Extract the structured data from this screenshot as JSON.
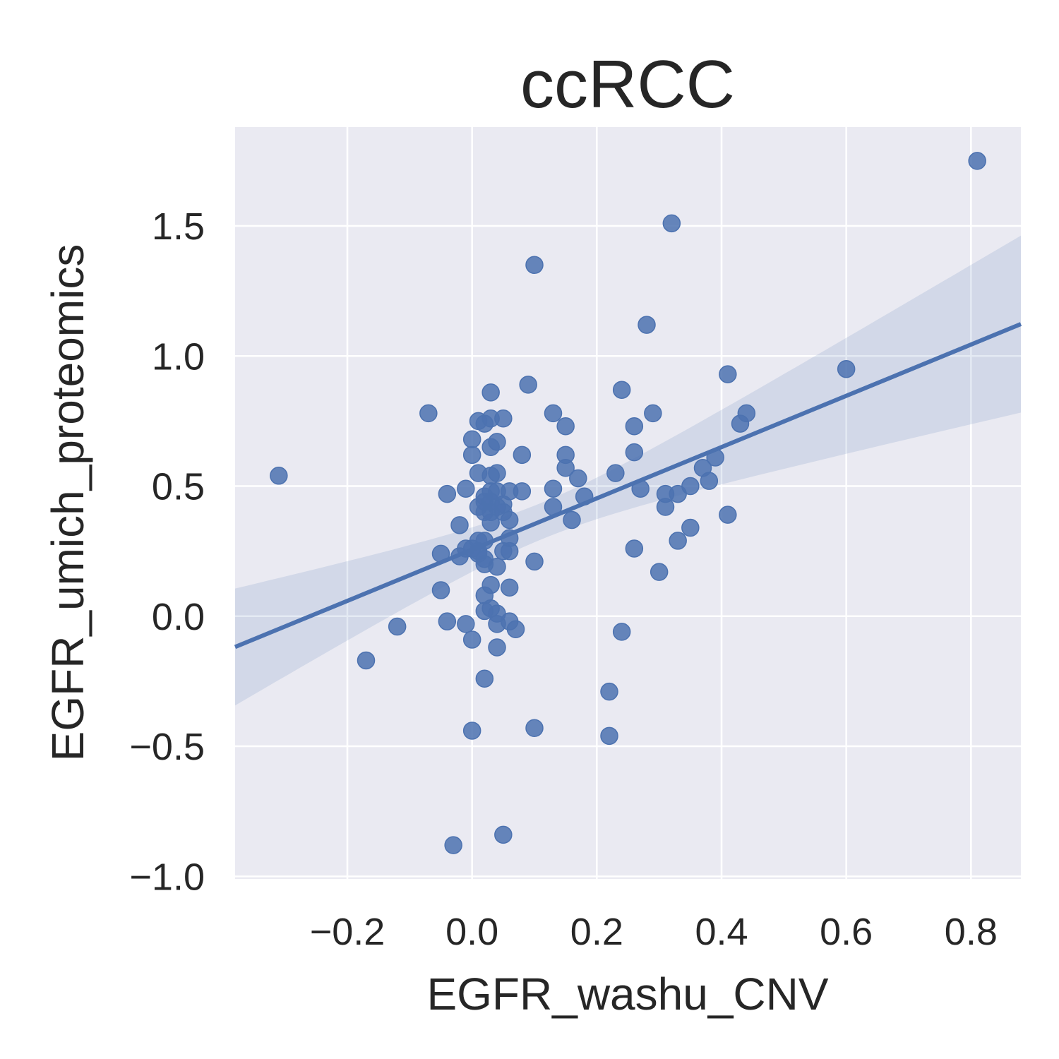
{
  "chart_data": {
    "type": "scatter",
    "title": "ccRCC",
    "xlabel": "EGFR_washu_CNV",
    "ylabel": "EGFR_umich_proteomics",
    "xlim": [
      -0.38,
      0.88
    ],
    "ylim": [
      -1.01,
      1.88
    ],
    "xticks": [
      -0.2,
      0.0,
      0.2,
      0.4,
      0.6,
      0.8
    ],
    "xtick_labels": [
      "−0.2",
      "0.0",
      "0.2",
      "0.4",
      "0.6",
      "0.8"
    ],
    "yticks": [
      -1.0,
      -0.5,
      0.0,
      0.5,
      1.0,
      1.5
    ],
    "ytick_labels": [
      "−1.0",
      "−0.5",
      "0.0",
      "0.5",
      "1.0",
      "1.5"
    ],
    "grid": true,
    "legend": "none",
    "colors": {
      "background": "#EAEAF2",
      "grid": "#FFFFFF",
      "points": "#4C72B0",
      "band": "#4C72B0"
    },
    "points": [
      [
        -0.31,
        0.54
      ],
      [
        -0.17,
        -0.17
      ],
      [
        -0.12,
        -0.04
      ],
      [
        -0.07,
        0.78
      ],
      [
        -0.05,
        0.24
      ],
      [
        -0.05,
        0.1
      ],
      [
        -0.04,
        -0.02
      ],
      [
        -0.04,
        0.47
      ],
      [
        -0.03,
        -0.88
      ],
      [
        -0.02,
        0.35
      ],
      [
        -0.02,
        0.23
      ],
      [
        -0.01,
        0.49
      ],
      [
        -0.01,
        -0.03
      ],
      [
        -0.01,
        0.26
      ],
      [
        0.0,
        0.68
      ],
      [
        0.0,
        0.62
      ],
      [
        0.0,
        -0.44
      ],
      [
        0.0,
        -0.09
      ],
      [
        0.0,
        0.26
      ],
      [
        0.01,
        0.42
      ],
      [
        0.01,
        0.55
      ],
      [
        0.01,
        0.29
      ],
      [
        0.01,
        0.25
      ],
      [
        0.01,
        0.75
      ],
      [
        0.01,
        0.24
      ],
      [
        0.02,
        0.74
      ],
      [
        0.02,
        0.44
      ],
      [
        0.02,
        -0.24
      ],
      [
        0.02,
        0.08
      ],
      [
        0.02,
        0.02
      ],
      [
        0.02,
        0.2
      ],
      [
        0.02,
        0.4
      ],
      [
        0.02,
        0.46
      ],
      [
        0.02,
        0.29
      ],
      [
        0.02,
        0.22
      ],
      [
        0.03,
        0.65
      ],
      [
        0.03,
        0.12
      ],
      [
        0.03,
        0.48
      ],
      [
        0.03,
        0.54
      ],
      [
        0.03,
        0.03
      ],
      [
        0.03,
        0.76
      ],
      [
        0.03,
        0.86
      ],
      [
        0.03,
        0.44
      ],
      [
        0.03,
        0.36
      ],
      [
        0.03,
        0.4
      ],
      [
        0.04,
        0.67
      ],
      [
        0.04,
        0.55
      ],
      [
        0.04,
        0.19
      ],
      [
        0.04,
        0.01
      ],
      [
        0.04,
        -0.12
      ],
      [
        0.04,
        -0.03
      ],
      [
        0.04,
        0.42
      ],
      [
        0.04,
        0.48
      ],
      [
        0.05,
        0.43
      ],
      [
        0.05,
        0.4
      ],
      [
        0.05,
        0.76
      ],
      [
        0.05,
        -0.84
      ],
      [
        0.05,
        0.25
      ],
      [
        0.06,
        0.3
      ],
      [
        0.06,
        0.11
      ],
      [
        0.06,
        -0.02
      ],
      [
        0.06,
        0.37
      ],
      [
        0.06,
        0.48
      ],
      [
        0.06,
        0.25
      ],
      [
        0.07,
        -0.05
      ],
      [
        0.08,
        0.48
      ],
      [
        0.08,
        0.62
      ],
      [
        0.09,
        0.89
      ],
      [
        0.1,
        1.35
      ],
      [
        0.1,
        -0.43
      ],
      [
        0.1,
        0.21
      ],
      [
        0.13,
        0.49
      ],
      [
        0.13,
        0.42
      ],
      [
        0.13,
        0.78
      ],
      [
        0.15,
        0.62
      ],
      [
        0.15,
        0.57
      ],
      [
        0.15,
        0.73
      ],
      [
        0.16,
        0.37
      ],
      [
        0.17,
        0.53
      ],
      [
        0.18,
        0.46
      ],
      [
        0.22,
        -0.46
      ],
      [
        0.22,
        -0.29
      ],
      [
        0.23,
        0.55
      ],
      [
        0.24,
        -0.06
      ],
      [
        0.24,
        0.87
      ],
      [
        0.26,
        0.73
      ],
      [
        0.26,
        0.63
      ],
      [
        0.26,
        0.26
      ],
      [
        0.28,
        1.12
      ],
      [
        0.27,
        0.49
      ],
      [
        0.29,
        0.78
      ],
      [
        0.3,
        0.17
      ],
      [
        0.31,
        0.47
      ],
      [
        0.31,
        0.42
      ],
      [
        0.32,
        1.51
      ],
      [
        0.33,
        0.47
      ],
      [
        0.33,
        0.29
      ],
      [
        0.35,
        0.34
      ],
      [
        0.35,
        0.5
      ],
      [
        0.37,
        0.57
      ],
      [
        0.38,
        0.52
      ],
      [
        0.39,
        0.61
      ],
      [
        0.41,
        0.93
      ],
      [
        0.41,
        0.39
      ],
      [
        0.44,
        0.78
      ],
      [
        0.43,
        0.74
      ],
      [
        0.6,
        0.95
      ],
      [
        0.81,
        1.75
      ]
    ],
    "regression": {
      "slope": 0.985,
      "intercept": 0.256
    }
  }
}
